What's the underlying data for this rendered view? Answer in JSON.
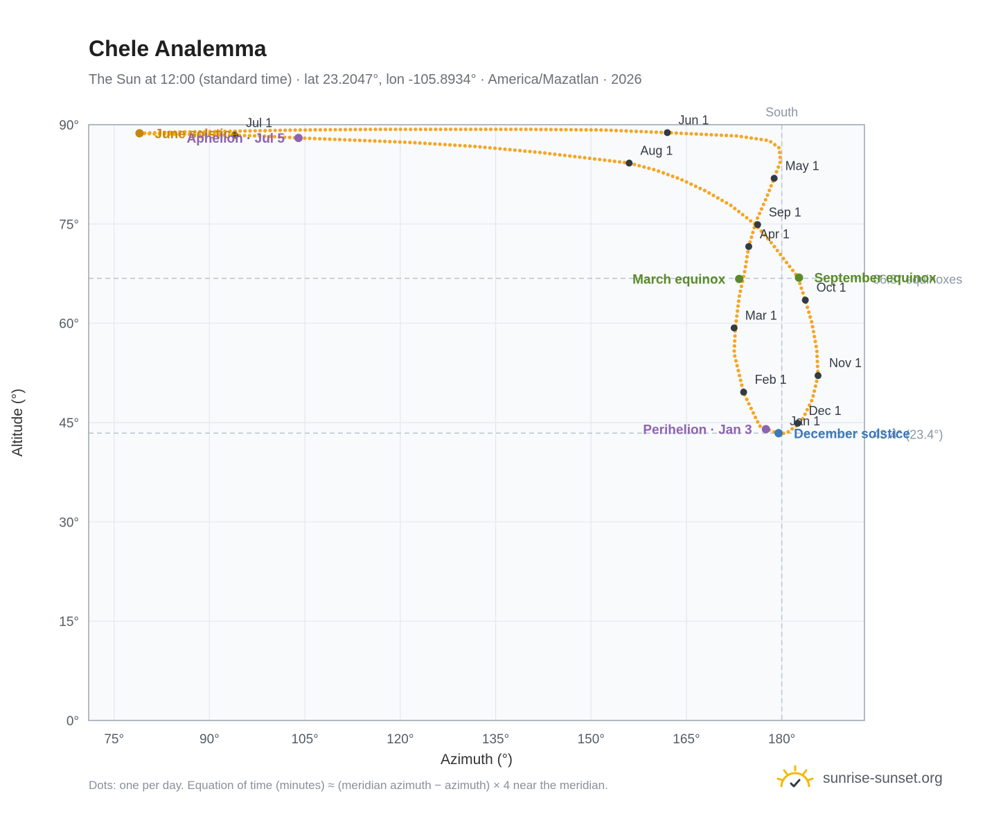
{
  "header": {
    "title": "Chele Analemma",
    "subtitle": "The Sun at 12:00 (standard time) · lat 23.2047°, lon -105.8934° · America/Mazatlan · 2026"
  },
  "footer": {
    "note": "Dots: one per day. Equation of time (minutes) ≈ (meridian azimuth − azimuth) × 4 near the meridian.",
    "brand": "sunrise-sunset.org"
  },
  "colors": {
    "curve": "#f5a623",
    "month_marker": "#333a44",
    "equinox": "#5a8a2a",
    "solstice_june": "#c8870a",
    "solstice_december": "#3a7ab8",
    "apsis": "#8e63b0",
    "plot_bg": "#f8fafc",
    "grid": "#e3e8ee",
    "reference_line": "#b8c4cf"
  },
  "chart_data": {
    "type": "scatter",
    "title": "Chele Analemma",
    "xlabel": "Azimuth (°)",
    "ylabel": "Altitude (°)",
    "xlim": [
      71,
      193
    ],
    "ylim": [
      0,
      90
    ],
    "x_ticks": [
      75,
      90,
      105,
      120,
      135,
      150,
      165,
      180
    ],
    "x_tick_labels": [
      "75°",
      "90°",
      "105°",
      "120°",
      "135°",
      "150°",
      "165°",
      "180°"
    ],
    "y_ticks": [
      0,
      15,
      30,
      45,
      60,
      75,
      90
    ],
    "y_tick_labels": [
      "0°",
      "15°",
      "30°",
      "45°",
      "60°",
      "75°",
      "90°"
    ],
    "grid": true,
    "series": [
      {
        "name": "Daily sun position",
        "points": [
          [
            179.5,
            43.3
          ],
          [
            176.5,
            44.5
          ],
          [
            174.0,
            49.5
          ],
          [
            172.5,
            55.5
          ],
          [
            172.7,
            59.3
          ],
          [
            173.3,
            64.0
          ],
          [
            174.2,
            68.0
          ],
          [
            174.8,
            71.6
          ],
          [
            176.0,
            75.5
          ],
          [
            177.6,
            79.0
          ],
          [
            178.8,
            81.9
          ],
          [
            179.8,
            84.5
          ],
          [
            179.6,
            86.5
          ],
          [
            178.0,
            87.6
          ],
          [
            173.0,
            88.3
          ],
          [
            162.0,
            88.8
          ],
          [
            152.0,
            89.2
          ],
          [
            140.0,
            89.3
          ],
          [
            128.0,
            89.3
          ],
          [
            116.0,
            89.3
          ],
          [
            104.0,
            89.2
          ],
          [
            93.0,
            89.0
          ],
          [
            85.0,
            88.9
          ],
          [
            79.0,
            88.7
          ],
          [
            82.0,
            88.6
          ],
          [
            90.0,
            88.5
          ],
          [
            98.0,
            88.3
          ],
          [
            104.0,
            88.0
          ],
          [
            112.0,
            87.7
          ],
          [
            122.0,
            87.3
          ],
          [
            132.0,
            86.7
          ],
          [
            142.0,
            85.8
          ],
          [
            150.0,
            84.9
          ],
          [
            156.0,
            84.2
          ],
          [
            160.0,
            83.2
          ],
          [
            164.0,
            81.8
          ],
          [
            168.0,
            80.0
          ],
          [
            172.0,
            77.8
          ],
          [
            176.0,
            74.8
          ],
          [
            178.5,
            72.0
          ],
          [
            180.5,
            69.5
          ],
          [
            182.5,
            67.0
          ],
          [
            183.7,
            63.5
          ],
          [
            184.7,
            60.2
          ],
          [
            185.5,
            56.0
          ],
          [
            185.7,
            52.1
          ],
          [
            184.8,
            48.5
          ],
          [
            183.0,
            45.0
          ],
          [
            180.7,
            43.4
          ],
          [
            179.5,
            43.3
          ]
        ]
      }
    ],
    "reference_lines": [
      {
        "axis": "x",
        "value": 180,
        "label": "South"
      },
      {
        "axis": "y",
        "value": 66.8,
        "label": "66.8° equinoxes"
      },
      {
        "axis": "y",
        "value": 43.4,
        "label": "43.4° (23.4°)"
      }
    ],
    "month_markers": [
      {
        "label": "Jan 1",
        "az": 179.5,
        "alt": 43.3
      },
      {
        "label": "Feb 1",
        "az": 174.0,
        "alt": 49.6
      },
      {
        "label": "Mar 1",
        "az": 172.5,
        "alt": 59.3
      },
      {
        "label": "Apr 1",
        "az": 174.8,
        "alt": 71.6
      },
      {
        "label": "May 1",
        "az": 178.8,
        "alt": 81.9
      },
      {
        "label": "Jun 1",
        "az": 162.0,
        "alt": 88.8
      },
      {
        "label": "Jul 1",
        "az": 94.0,
        "alt": 88.4
      },
      {
        "label": "Aug 1",
        "az": 156.0,
        "alt": 84.2
      },
      {
        "label": "Sep 1",
        "az": 176.2,
        "alt": 74.9
      },
      {
        "label": "Oct 1",
        "az": 183.7,
        "alt": 63.5
      },
      {
        "label": "Nov 1",
        "az": 185.7,
        "alt": 52.1
      },
      {
        "label": "Dec 1",
        "az": 182.5,
        "alt": 44.9
      }
    ],
    "events": [
      {
        "label": "March equinox",
        "az": 173.3,
        "alt": 66.7,
        "kind": "equinox"
      },
      {
        "label": "September equinox",
        "az": 182.7,
        "alt": 66.9,
        "kind": "equinox"
      },
      {
        "label": "June solstice",
        "az": 79.0,
        "alt": 88.7,
        "kind": "solstice_june"
      },
      {
        "label": "December solstice",
        "az": 179.5,
        "alt": 43.4,
        "kind": "solstice_december"
      },
      {
        "label": "Perihelion · Jan 3",
        "az": 177.5,
        "alt": 44.0,
        "kind": "apsis"
      },
      {
        "label": "Aphelion · Jul 5",
        "az": 104.0,
        "alt": 88.0,
        "kind": "apsis"
      }
    ]
  }
}
